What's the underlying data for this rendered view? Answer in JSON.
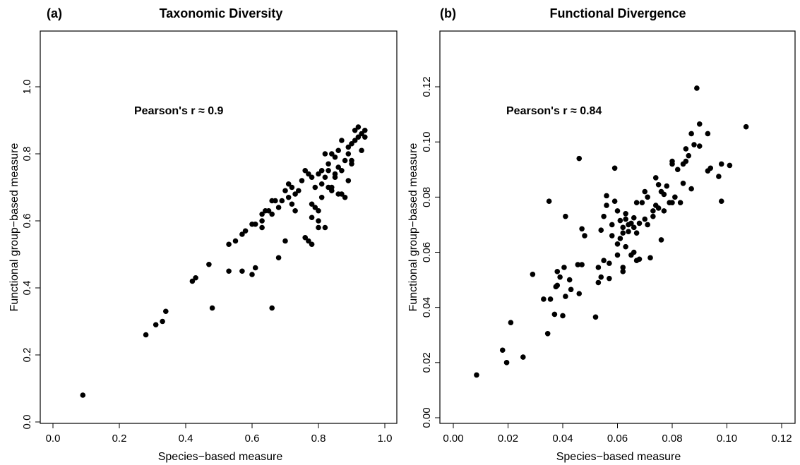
{
  "chart_data": [
    {
      "type": "scatter",
      "panel_label": "(a)",
      "title": "Taxonomic Diversity",
      "xlabel": "Species−based measure",
      "ylabel": "Functional group−based measure",
      "annotation": "Pearson's r ≈ 0.9",
      "xlim": [
        0,
        1.0
      ],
      "ylim": [
        0,
        1.0
      ],
      "x_ticks": [
        "0.0",
        "0.2",
        "0.4",
        "0.6",
        "0.8",
        "1.0"
      ],
      "y_ticks": [
        "0.0",
        "0.2",
        "0.4",
        "0.6",
        "0.8",
        "1.0"
      ],
      "grid": false,
      "points": [
        [
          0.09,
          0.08
        ],
        [
          0.28,
          0.26
        ],
        [
          0.31,
          0.29
        ],
        [
          0.33,
          0.3
        ],
        [
          0.34,
          0.33
        ],
        [
          0.42,
          0.42
        ],
        [
          0.43,
          0.43
        ],
        [
          0.47,
          0.47
        ],
        [
          0.48,
          0.34
        ],
        [
          0.53,
          0.45
        ],
        [
          0.53,
          0.53
        ],
        [
          0.55,
          0.54
        ],
        [
          0.57,
          0.56
        ],
        [
          0.58,
          0.57
        ],
        [
          0.57,
          0.45
        ],
        [
          0.6,
          0.44
        ],
        [
          0.6,
          0.59
        ],
        [
          0.61,
          0.46
        ],
        [
          0.61,
          0.59
        ],
        [
          0.63,
          0.58
        ],
        [
          0.63,
          0.6
        ],
        [
          0.63,
          0.62
        ],
        [
          0.64,
          0.63
        ],
        [
          0.65,
          0.63
        ],
        [
          0.66,
          0.34
        ],
        [
          0.66,
          0.66
        ],
        [
          0.66,
          0.62
        ],
        [
          0.67,
          0.66
        ],
        [
          0.68,
          0.49
        ],
        [
          0.68,
          0.64
        ],
        [
          0.69,
          0.66
        ],
        [
          0.7,
          0.54
        ],
        [
          0.7,
          0.69
        ],
        [
          0.71,
          0.67
        ],
        [
          0.71,
          0.71
        ],
        [
          0.72,
          0.7
        ],
        [
          0.72,
          0.65
        ],
        [
          0.73,
          0.68
        ],
        [
          0.73,
          0.63
        ],
        [
          0.74,
          0.69
        ],
        [
          0.75,
          0.72
        ],
        [
          0.76,
          0.75
        ],
        [
          0.76,
          0.55
        ],
        [
          0.77,
          0.74
        ],
        [
          0.77,
          0.54
        ],
        [
          0.78,
          0.53
        ],
        [
          0.78,
          0.65
        ],
        [
          0.78,
          0.61
        ],
        [
          0.78,
          0.73
        ],
        [
          0.79,
          0.64
        ],
        [
          0.79,
          0.7
        ],
        [
          0.8,
          0.74
        ],
        [
          0.8,
          0.58
        ],
        [
          0.8,
          0.6
        ],
        [
          0.8,
          0.63
        ],
        [
          0.81,
          0.75
        ],
        [
          0.81,
          0.71
        ],
        [
          0.81,
          0.67
        ],
        [
          0.82,
          0.73
        ],
        [
          0.82,
          0.58
        ],
        [
          0.82,
          0.8
        ],
        [
          0.83,
          0.75
        ],
        [
          0.83,
          0.77
        ],
        [
          0.83,
          0.7
        ],
        [
          0.84,
          0.8
        ],
        [
          0.84,
          0.69
        ],
        [
          0.85,
          0.73
        ],
        [
          0.85,
          0.79
        ],
        [
          0.86,
          0.68
        ],
        [
          0.86,
          0.76
        ],
        [
          0.86,
          0.81
        ],
        [
          0.87,
          0.75
        ],
        [
          0.87,
          0.68
        ],
        [
          0.87,
          0.84
        ],
        [
          0.88,
          0.78
        ],
        [
          0.88,
          0.67
        ],
        [
          0.89,
          0.82
        ],
        [
          0.89,
          0.72
        ],
        [
          0.89,
          0.8
        ],
        [
          0.9,
          0.83
        ],
        [
          0.9,
          0.78
        ],
        [
          0.9,
          0.77
        ],
        [
          0.91,
          0.84
        ],
        [
          0.91,
          0.87
        ],
        [
          0.92,
          0.85
        ],
        [
          0.92,
          0.88
        ],
        [
          0.93,
          0.81
        ],
        [
          0.93,
          0.86
        ],
        [
          0.94,
          0.87
        ],
        [
          0.94,
          0.85
        ],
        [
          0.85,
          0.74
        ],
        [
          0.84,
          0.7
        ]
      ]
    },
    {
      "type": "scatter",
      "panel_label": "(b)",
      "title": "Functional Divergence",
      "xlabel": "Species−based measure",
      "ylabel": "Functional group−based measure",
      "annotation": "Pearson's r ≈ 0.84",
      "xlim": [
        0,
        0.12
      ],
      "ylim": [
        0,
        0.12
      ],
      "x_ticks": [
        "0.00",
        "0.02",
        "0.04",
        "0.06",
        "0.08",
        "0.10",
        "0.12"
      ],
      "y_ticks": [
        "0.00",
        "0.02",
        "0.04",
        "0.06",
        "0.08",
        "0.10",
        "0.12"
      ],
      "grid": false,
      "points": [
        [
          0.0085,
          0.0155
        ],
        [
          0.018,
          0.0245
        ],
        [
          0.0195,
          0.02
        ],
        [
          0.021,
          0.0345
        ],
        [
          0.0255,
          0.022
        ],
        [
          0.029,
          0.052
        ],
        [
          0.033,
          0.043
        ],
        [
          0.0345,
          0.0305
        ],
        [
          0.035,
          0.0785
        ],
        [
          0.0355,
          0.043
        ],
        [
          0.037,
          0.0375
        ],
        [
          0.0375,
          0.0475
        ],
        [
          0.038,
          0.053
        ],
        [
          0.038,
          0.048
        ],
        [
          0.039,
          0.051
        ],
        [
          0.04,
          0.037
        ],
        [
          0.0405,
          0.0545
        ],
        [
          0.041,
          0.073
        ],
        [
          0.041,
          0.044
        ],
        [
          0.0425,
          0.05
        ],
        [
          0.043,
          0.0465
        ],
        [
          0.0455,
          0.0555
        ],
        [
          0.046,
          0.094
        ],
        [
          0.046,
          0.045
        ],
        [
          0.047,
          0.0685
        ],
        [
          0.047,
          0.0555
        ],
        [
          0.048,
          0.066
        ],
        [
          0.052,
          0.0365
        ],
        [
          0.053,
          0.0545
        ],
        [
          0.053,
          0.049
        ],
        [
          0.054,
          0.051
        ],
        [
          0.054,
          0.068
        ],
        [
          0.055,
          0.057
        ],
        [
          0.055,
          0.073
        ],
        [
          0.056,
          0.0805
        ],
        [
          0.056,
          0.077
        ],
        [
          0.057,
          0.0505
        ],
        [
          0.057,
          0.056
        ],
        [
          0.058,
          0.066
        ],
        [
          0.058,
          0.07
        ],
        [
          0.059,
          0.0785
        ],
        [
          0.059,
          0.0905
        ],
        [
          0.06,
          0.063
        ],
        [
          0.06,
          0.059
        ],
        [
          0.06,
          0.075
        ],
        [
          0.061,
          0.065
        ],
        [
          0.061,
          0.0715
        ],
        [
          0.062,
          0.053
        ],
        [
          0.062,
          0.0545
        ],
        [
          0.062,
          0.069
        ],
        [
          0.062,
          0.067
        ],
        [
          0.063,
          0.072
        ],
        [
          0.063,
          0.074
        ],
        [
          0.063,
          0.062
        ],
        [
          0.064,
          0.07
        ],
        [
          0.064,
          0.0675
        ],
        [
          0.065,
          0.0705
        ],
        [
          0.065,
          0.059
        ],
        [
          0.066,
          0.0725
        ],
        [
          0.066,
          0.06
        ],
        [
          0.066,
          0.069
        ],
        [
          0.067,
          0.078
        ],
        [
          0.067,
          0.057
        ],
        [
          0.067,
          0.067
        ],
        [
          0.068,
          0.0705
        ],
        [
          0.068,
          0.0575
        ],
        [
          0.069,
          0.078
        ],
        [
          0.07,
          0.072
        ],
        [
          0.07,
          0.082
        ],
        [
          0.071,
          0.08
        ],
        [
          0.071,
          0.07
        ],
        [
          0.072,
          0.058
        ],
        [
          0.073,
          0.073
        ],
        [
          0.073,
          0.075
        ],
        [
          0.074,
          0.087
        ],
        [
          0.074,
          0.077
        ],
        [
          0.075,
          0.0845
        ],
        [
          0.075,
          0.076
        ],
        [
          0.076,
          0.0645
        ],
        [
          0.076,
          0.082
        ],
        [
          0.077,
          0.075
        ],
        [
          0.077,
          0.081
        ],
        [
          0.078,
          0.084
        ],
        [
          0.079,
          0.078
        ],
        [
          0.08,
          0.078
        ],
        [
          0.08,
          0.092
        ],
        [
          0.08,
          0.093
        ],
        [
          0.081,
          0.08
        ],
        [
          0.082,
          0.09
        ],
        [
          0.083,
          0.078
        ],
        [
          0.084,
          0.085
        ],
        [
          0.084,
          0.092
        ],
        [
          0.085,
          0.0975
        ],
        [
          0.085,
          0.093
        ],
        [
          0.086,
          0.095
        ],
        [
          0.087,
          0.083
        ],
        [
          0.087,
          0.103
        ],
        [
          0.088,
          0.099
        ],
        [
          0.089,
          0.1195
        ],
        [
          0.09,
          0.1065
        ],
        [
          0.09,
          0.0985
        ],
        [
          0.093,
          0.0895
        ],
        [
          0.093,
          0.103
        ],
        [
          0.094,
          0.0905
        ],
        [
          0.097,
          0.0875
        ],
        [
          0.098,
          0.092
        ],
        [
          0.098,
          0.0785
        ],
        [
          0.101,
          0.0915
        ],
        [
          0.107,
          0.1055
        ]
      ]
    }
  ]
}
